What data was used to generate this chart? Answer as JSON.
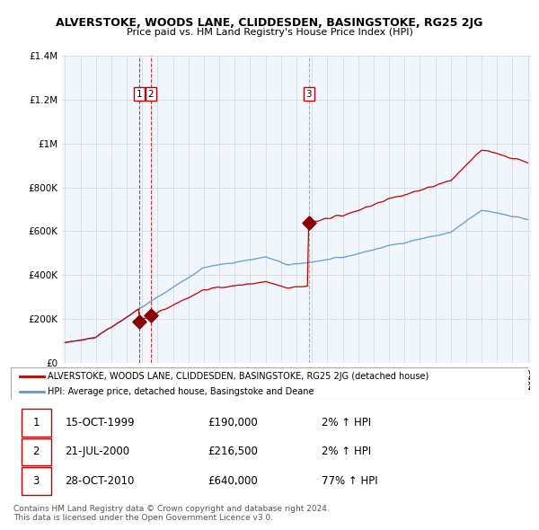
{
  "title": "ALVERSTOKE, WOODS LANE, CLIDDESDEN, BASINGSTOKE, RG25 2JG",
  "subtitle": "Price paid vs. HM Land Registry's House Price Index (HPI)",
  "legend_line1": "ALVERSTOKE, WOODS LANE, CLIDDESDEN, BASINGSTOKE, RG25 2JG (detached house)",
  "legend_line2": "HPI: Average price, detached house, Basingstoke and Deane",
  "transactions": [
    {
      "num": 1,
      "date": "15-OCT-1999",
      "price": 190000,
      "pct": "2%",
      "dir": "↑"
    },
    {
      "num": 2,
      "date": "21-JUL-2000",
      "price": 216500,
      "pct": "2%",
      "dir": "↑"
    },
    {
      "num": 3,
      "date": "28-OCT-2010",
      "price": 640000,
      "pct": "77%",
      "dir": "↑"
    }
  ],
  "footnote1": "Contains HM Land Registry data © Crown copyright and database right 2024.",
  "footnote2": "This data is licensed under the Open Government Licence v3.0.",
  "hpi_color": "#5b9bd5",
  "hpi_fill_color": "#dce9f5",
  "price_color": "#c00000",
  "marker_color": "#8b0000",
  "vline1_color": "#cc0000",
  "vline3_color": "#999999",
  "grid_color": "#cccccc",
  "bg_color": "#ffffff",
  "chart_bg": "#f0f6fc",
  "ylim": [
    0,
    1400000
  ],
  "yticks": [
    0,
    200000,
    400000,
    600000,
    800000,
    1000000,
    1200000,
    1400000
  ],
  "ytick_labels": [
    "£0",
    "£200K",
    "£400K",
    "£600K",
    "£800K",
    "£1M",
    "£1.2M",
    "£1.4M"
  ],
  "year_start": 1995,
  "year_end": 2025
}
